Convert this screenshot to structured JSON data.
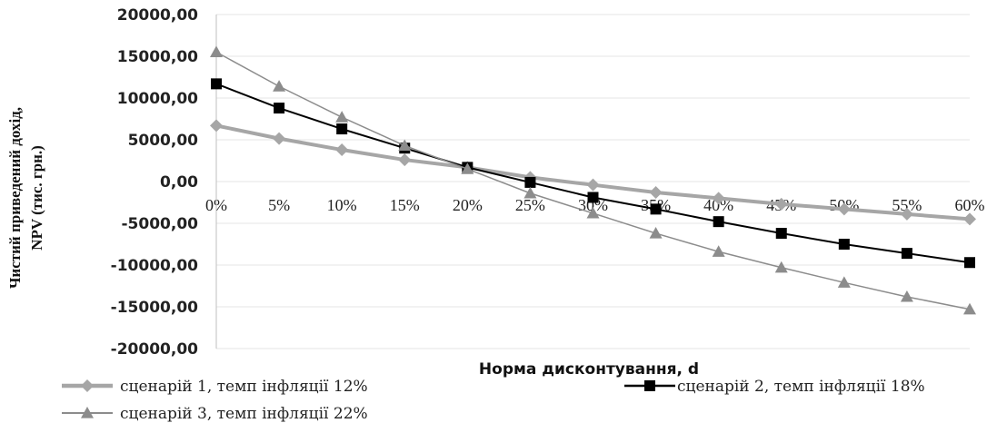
{
  "chart_data": {
    "type": "line",
    "xlabel": "Норма дисконтування, d",
    "ylabel_line1": "Чистий приведений дохід,",
    "ylabel_line2": "NPV (тис. грн.)",
    "ylim": [
      -20000,
      20000
    ],
    "y_ticks": [
      "20000,00",
      "15000,00",
      "10000,00",
      "5000,00",
      "0,00",
      "-5000,00",
      "-10000,00",
      "-15000,00",
      "-20000,00"
    ],
    "y_tick_values": [
      20000,
      15000,
      10000,
      5000,
      0,
      -5000,
      -10000,
      -15000,
      -20000
    ],
    "categories": [
      "0%",
      "5%",
      "10%",
      "15%",
      "20%",
      "25%",
      "30%",
      "35%",
      "40%",
      "45%",
      "50%",
      "55%",
      "60%"
    ],
    "grid": true,
    "legend_position": "bottom",
    "series": [
      {
        "name": "сценарій 1, темп інфляції 12%",
        "marker": "diamond",
        "color": "#a6a6a6",
        "values": [
          6700,
          5150,
          3800,
          2600,
          1700,
          500,
          -400,
          -1300,
          -2000,
          -2700,
          -3300,
          -3900,
          -4500
        ]
      },
      {
        "name": "сценарій 2, темп інфляції 18%",
        "marker": "square",
        "color": "#000000",
        "values": [
          11700,
          8800,
          6300,
          4000,
          1700,
          -100,
          -1900,
          -3300,
          -4800,
          -6200,
          -7500,
          -8600,
          -9700
        ]
      },
      {
        "name": "сценарій 3, темп інфляції 22%",
        "marker": "triangle",
        "color": "#8c8c8c",
        "values": [
          15500,
          11400,
          7700,
          4300,
          1500,
          -1400,
          -3800,
          -6200,
          -8400,
          -10300,
          -12100,
          -13800,
          -15300
        ]
      }
    ]
  }
}
